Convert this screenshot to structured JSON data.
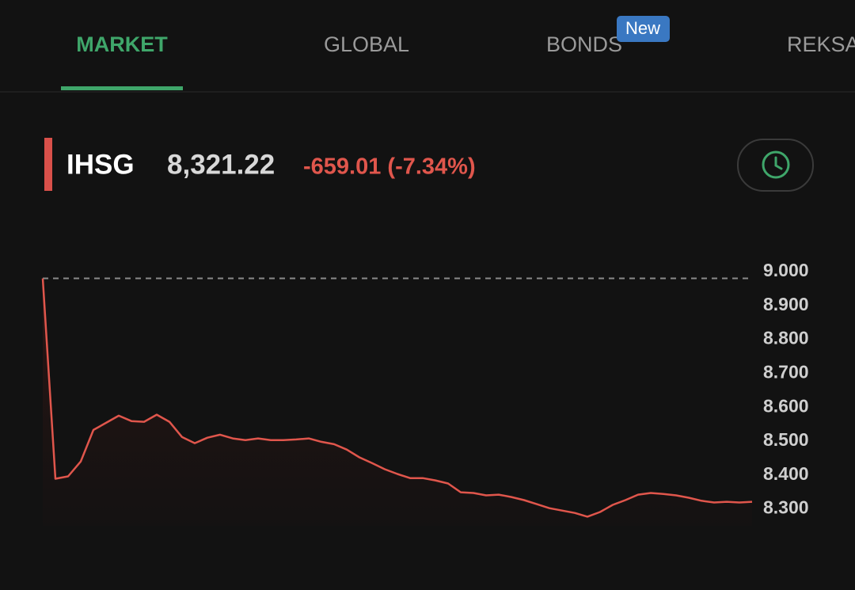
{
  "tabs": [
    {
      "label": "MARKET",
      "active": true
    },
    {
      "label": "GLOBAL"
    },
    {
      "label": "BONDS",
      "badge": "New"
    },
    {
      "label": "REKSA"
    }
  ],
  "index": {
    "name": "IHSG",
    "price": "8,321.22",
    "change": "-659.01 (-7.34%)"
  },
  "chart_data": {
    "type": "line",
    "color": "#e0564c",
    "values": [
      8980,
      8389,
      8396,
      8440,
      8533,
      8554,
      8575,
      8559,
      8557,
      8578,
      8557,
      8512,
      8494,
      8510,
      8519,
      8508,
      8503,
      8508,
      8503,
      8503,
      8505,
      8508,
      8498,
      8491,
      8475,
      8452,
      8435,
      8417,
      8403,
      8391,
      8391,
      8384,
      8375,
      8349,
      8347,
      8340,
      8342,
      8335,
      8326,
      8314,
      8302,
      8295,
      8288,
      8277,
      8291,
      8312,
      8326,
      8342,
      8347,
      8344,
      8340,
      8333,
      8324,
      8319,
      8321,
      8319,
      8321
    ],
    "reference_line": 8980.23,
    "ylim": [
      8250,
      9000
    ],
    "yticks": [
      {
        "value": 9000,
        "label": "9.000"
      },
      {
        "value": 8900,
        "label": "8.900"
      },
      {
        "value": 8800,
        "label": "8.800"
      },
      {
        "value": 8700,
        "label": "8.700"
      },
      {
        "value": 8600,
        "label": "8.600"
      },
      {
        "value": 8500,
        "label": "8.500"
      },
      {
        "value": 8400,
        "label": "8.400"
      },
      {
        "value": 8300,
        "label": "8.300"
      }
    ]
  }
}
